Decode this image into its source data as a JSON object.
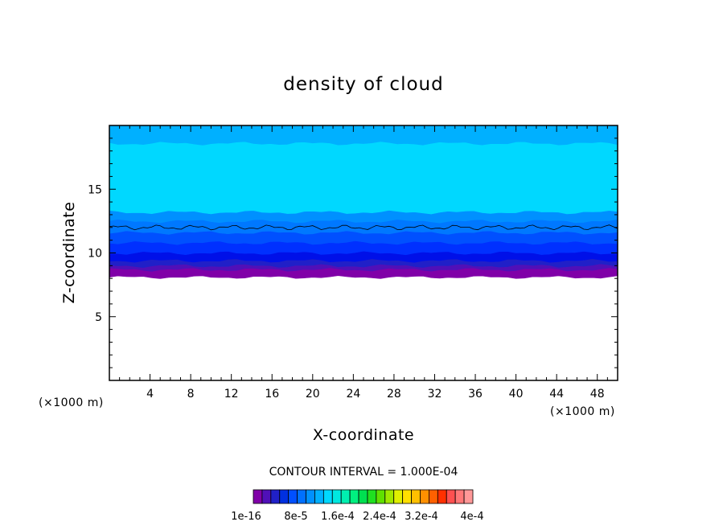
{
  "chart_data": {
    "type": "heatmap",
    "title": "density of cloud",
    "xlabel": "X-coordinate",
    "ylabel": "Z-coordinate",
    "x_unit": "(×1000 m)",
    "z_unit": "(×1000 m)",
    "xlim": [
      0,
      50
    ],
    "ylim": [
      0,
      20
    ],
    "x_ticks": [
      "4",
      "8",
      "12",
      "16",
      "20",
      "24",
      "28",
      "32",
      "36",
      "40",
      "44",
      "48"
    ],
    "y_ticks": [
      "5",
      "10",
      "15"
    ],
    "contour_interval_text": "CONTOUR INTERVAL = 1.000E-04",
    "colorbar_labels": [
      "1e-16",
      "8e-5",
      "1.6e-4",
      "2.4e-4",
      "3.2e-4",
      "4e-4"
    ],
    "colorbar_colors": [
      "#8000a8",
      "#5010b8",
      "#2020c8",
      "#0030e0",
      "#0050ff",
      "#0070ff",
      "#0090ff",
      "#00b0ff",
      "#00d8ff",
      "#00e8e0",
      "#00f0b0",
      "#00f080",
      "#00e050",
      "#20e020",
      "#60e000",
      "#a0e800",
      "#e0f000",
      "#ffe000",
      "#ffc000",
      "#ff9000",
      "#ff6000",
      "#ff3000",
      "#ff5050",
      "#ff7878",
      "#ff9898"
    ],
    "cloud_layers_km": [
      {
        "bottom": 8.1,
        "top": 8.7,
        "color": "#8000a8"
      },
      {
        "bottom": 8.7,
        "top": 9.0,
        "color": "#5010b8"
      },
      {
        "bottom": 9.0,
        "top": 9.4,
        "color": "#2020c8"
      },
      {
        "bottom": 9.4,
        "top": 10.0,
        "color": "#0010e8"
      },
      {
        "bottom": 10.0,
        "top": 10.8,
        "color": "#0030ff"
      },
      {
        "bottom": 10.8,
        "top": 11.6,
        "color": "#0050ff"
      },
      {
        "bottom": 11.6,
        "top": 12.5,
        "color": "#0078ff"
      },
      {
        "bottom": 12.5,
        "top": 13.2,
        "color": "#0090ff"
      },
      {
        "bottom": 13.2,
        "top": 18.6,
        "color": "#00d8ff"
      },
      {
        "bottom": 18.6,
        "top": 19.8,
        "color": "#00b0ff"
      }
    ],
    "contour_line_km": 12.0
  }
}
